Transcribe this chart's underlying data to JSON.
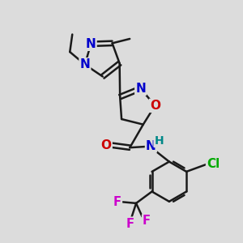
{
  "background_color": "#dcdcdc",
  "bond_color": "#1a1a1a",
  "atom_colors": {
    "N": "#0000cc",
    "O": "#cc0000",
    "F": "#cc00cc",
    "Cl": "#00aa00",
    "C": "#1a1a1a",
    "H": "#008888"
  },
  "lw": 1.8,
  "font_size_atom": 11,
  "font_size_small": 9.5,
  "figsize": [
    3.0,
    3.0
  ],
  "dpi": 100,
  "xlim": [
    0,
    10
  ],
  "ylim": [
    0,
    10
  ]
}
